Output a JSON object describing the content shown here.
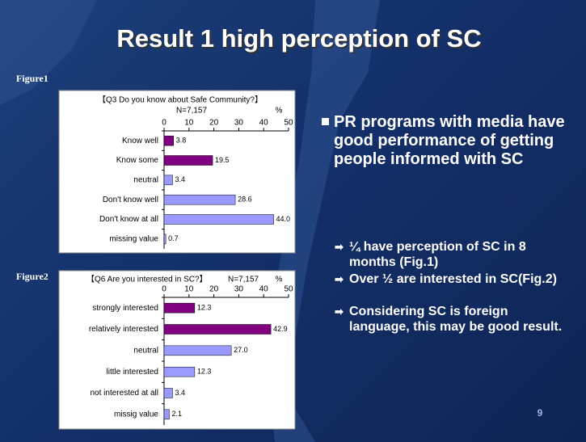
{
  "title": "Result 1 high perception of SC",
  "figure_labels": [
    "Figure1",
    "Figure2"
  ],
  "bullets": {
    "main": "PR programs with media have good performance of getting people informed with SC",
    "sub": [
      "¼ have perception of SC in 8 months (Fig.1)",
      "Over ½ are interested in SC(Fig.2)",
      "Considering SC is foreign language, this may be good result."
    ]
  },
  "page_number": "9",
  "chart_data": [
    {
      "type": "hbar",
      "title": "【Q3 Do you know about Safe Community?】",
      "subtitle": "N=7,157",
      "x_label": "%",
      "categories": [
        "Know well",
        "Know some",
        "neutral",
        "Don't know well",
        "Don't know at all",
        "missing value"
      ],
      "values": [
        3.8,
        19.5,
        3.4,
        28.6,
        44.0,
        0.7
      ],
      "value_labels": [
        "3.8",
        "19.5",
        "3.4",
        "28.6",
        "44.0",
        "0.7"
      ],
      "colors": [
        "#800080",
        "#800080",
        "#9999ff",
        "#9999ff",
        "#9999ff",
        "#9999ff"
      ],
      "xlim": [
        0,
        50
      ],
      "xticks": [
        0,
        10,
        20,
        30,
        40,
        50
      ]
    },
    {
      "type": "hbar",
      "title": "【Q6 Are you interested in SC?】",
      "subtitle": "N=7,157",
      "x_label": "%",
      "categories": [
        "strongly interested",
        "relatively interested",
        "neutral",
        "little interested",
        "not interested at all",
        "missig value"
      ],
      "values": [
        12.3,
        42.9,
        27.0,
        12.3,
        3.4,
        2.1
      ],
      "value_labels": [
        "12.3",
        "42.9",
        "27.0",
        "12.3",
        "3.4",
        "2.1"
      ],
      "colors": [
        "#800080",
        "#800080",
        "#9999ff",
        "#9999ff",
        "#9999ff",
        "#9999ff"
      ],
      "xlim": [
        0,
        50
      ],
      "xticks": [
        0,
        10,
        20,
        30,
        40,
        50
      ]
    }
  ]
}
